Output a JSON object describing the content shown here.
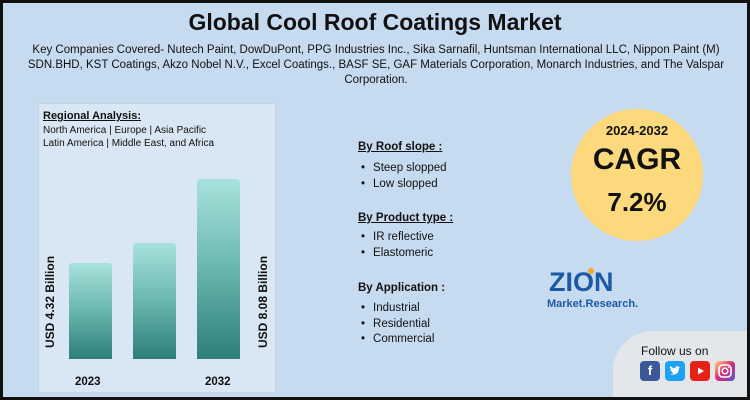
{
  "title": "Global Cool Roof Coatings Market",
  "companies_text": "Key Companies Covered- Nutech Paint, DowDuPont, PPG Industries Inc., Sika Sarnafil, Huntsman International LLC, Nippon Paint (M) SDN.BHD, KST Coatings, Akzo Nobel N.V., Excel Coatings., BASF SE, GAF Materials Corporation, Monarch Industries, and The Valspar Corporation.",
  "regional": {
    "title": "Regional Analysis:",
    "line1": "North America | Europe | Asia Pacific",
    "line2": "Latin America | Middle East, and Africa"
  },
  "chart_data": {
    "type": "bar",
    "categories": [
      "2023",
      "",
      "2032"
    ],
    "values": [
      4.32,
      null,
      8.08
    ],
    "data_labels": [
      "USD 4.32 Billion",
      "",
      "USD 8.08 Billion"
    ],
    "tick_labels": [
      "2023",
      "2032"
    ],
    "title": "",
    "xlabel": "",
    "ylabel": "",
    "grid": false,
    "notes": "Middle bar is unlabeled in the image"
  },
  "segments": [
    {
      "title": "By Roof slope :",
      "items": [
        "Steep slopped",
        "Low slopped"
      ]
    },
    {
      "title": "By Product type :",
      "items": [
        "IR reflective",
        "Elastomeric"
      ]
    },
    {
      "title": "By Application :",
      "items": [
        "Industrial",
        "Residential",
        "Commercial"
      ]
    }
  ],
  "cagr": {
    "years": "2024-2032",
    "label": "CAGR",
    "value": "7.2%"
  },
  "logo": {
    "line1": "ZION",
    "line2": "Market.Research."
  },
  "follow": {
    "text": "Follow us on",
    "icons": [
      "facebook-icon",
      "twitter-icon",
      "youtube-icon",
      "instagram-icon"
    ]
  },
  "colors": {
    "background": "#c6dbf0",
    "bar_top": "#a9e2dc",
    "bar_bottom": "#2c7f7a",
    "cagr_circle": "#fcd97d",
    "logo_blue": "#1c5aa6",
    "logo_orange": "#f5a623"
  }
}
